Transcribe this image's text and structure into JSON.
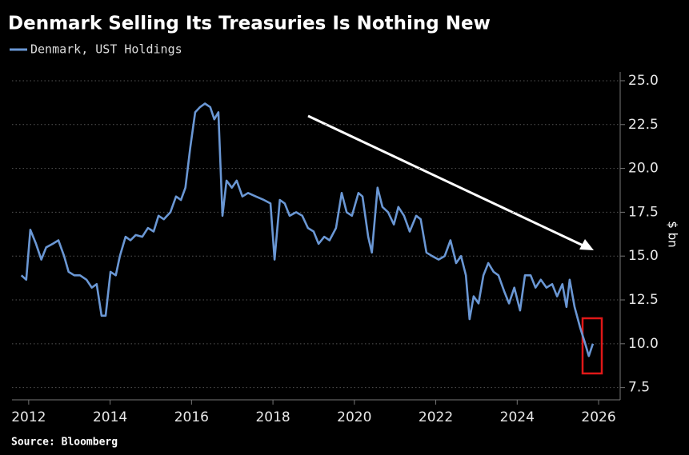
{
  "chart_data": {
    "type": "line",
    "title": "Denmark Selling Its Treasuries Is Nothing New",
    "y_axis_label": "$ bn",
    "source": "Source: Bloomberg",
    "x": [
      2011.82,
      2011.94,
      2012.04,
      2012.18,
      2012.31,
      2012.43,
      2012.59,
      2012.73,
      2012.87,
      2012.98,
      2013.12,
      2013.26,
      2013.42,
      2013.55,
      2013.67,
      2013.79,
      2013.89,
      2014.01,
      2014.14,
      2014.24,
      2014.38,
      2014.5,
      2014.63,
      2014.79,
      2014.93,
      2015.07,
      2015.19,
      2015.32,
      2015.48,
      2015.62,
      2015.74,
      2015.85,
      2015.97,
      2016.09,
      2016.21,
      2016.33,
      2016.46,
      2016.56,
      2016.66,
      2016.76,
      2016.86,
      2016.99,
      2017.11,
      2017.25,
      2017.39,
      2017.58,
      2017.78,
      2017.94,
      2018.04,
      2018.17,
      2018.29,
      2018.41,
      2018.57,
      2018.72,
      2018.86,
      2019.0,
      2019.12,
      2019.26,
      2019.39,
      2019.55,
      2019.69,
      2019.81,
      2019.94,
      2020.1,
      2020.2,
      2020.34,
      2020.43,
      2020.57,
      2020.69,
      2020.83,
      2020.97,
      2021.08,
      2021.22,
      2021.36,
      2021.52,
      2021.63,
      2021.77,
      2021.91,
      2022.07,
      2022.22,
      2022.36,
      2022.5,
      2022.62,
      2022.74,
      2022.83,
      2022.93,
      2023.05,
      2023.17,
      2023.29,
      2023.42,
      2023.54,
      2023.68,
      2023.8,
      2023.93,
      2024.07,
      2024.19,
      2024.33,
      2024.45,
      2024.58,
      2024.72,
      2024.86,
      2024.98,
      2025.11,
      2025.21,
      2025.29,
      2025.41,
      2025.55,
      2025.67,
      2025.76,
      2025.86
    ],
    "series": [
      {
        "name": "Denmark, UST Holdings",
        "color": "#6a97d4",
        "values": [
          13.9,
          13.65,
          16.5,
          15.7,
          14.8,
          15.5,
          15.7,
          15.9,
          15.0,
          14.1,
          13.9,
          13.9,
          13.65,
          13.2,
          13.4,
          11.6,
          11.6,
          14.1,
          13.9,
          15.0,
          16.1,
          15.9,
          16.2,
          16.1,
          16.6,
          16.4,
          17.3,
          17.1,
          17.5,
          18.4,
          18.2,
          18.9,
          21.2,
          23.2,
          23.5,
          23.7,
          23.5,
          22.8,
          23.2,
          17.3,
          19.3,
          18.9,
          19.3,
          18.4,
          18.6,
          18.4,
          18.2,
          18.0,
          14.8,
          18.2,
          18.0,
          17.3,
          17.5,
          17.3,
          16.6,
          16.4,
          15.7,
          16.1,
          15.9,
          16.6,
          18.6,
          17.5,
          17.3,
          18.6,
          18.4,
          16.1,
          15.2,
          18.9,
          17.8,
          17.5,
          16.8,
          17.8,
          17.3,
          16.4,
          17.3,
          17.1,
          15.2,
          15.0,
          14.8,
          15.0,
          15.9,
          14.6,
          15.0,
          13.9,
          11.4,
          12.7,
          12.3,
          13.9,
          14.6,
          14.1,
          13.9,
          13.0,
          12.3,
          13.2,
          11.9,
          13.9,
          13.9,
          13.2,
          13.65,
          13.2,
          13.4,
          12.7,
          13.4,
          12.1,
          13.65,
          12.1,
          10.9,
          10.0,
          9.3,
          10.0
        ]
      }
    ],
    "xlim": [
      2011.59,
      2026.53
    ],
    "xticks": [
      2012,
      2014,
      2016,
      2018,
      2020,
      2022,
      2024,
      2026
    ],
    "ylim": [
      6.8,
      25.5
    ],
    "yticks": [
      7.5,
      {
        "value": 10,
        "label": "10.0"
      },
      12.5,
      {
        "value": 15,
        "label": "15.0"
      },
      17.5,
      {
        "value": 20,
        "label": "20.0"
      },
      22.5,
      {
        "value": 25,
        "label": "25.0"
      }
    ],
    "grid": true
  }
}
